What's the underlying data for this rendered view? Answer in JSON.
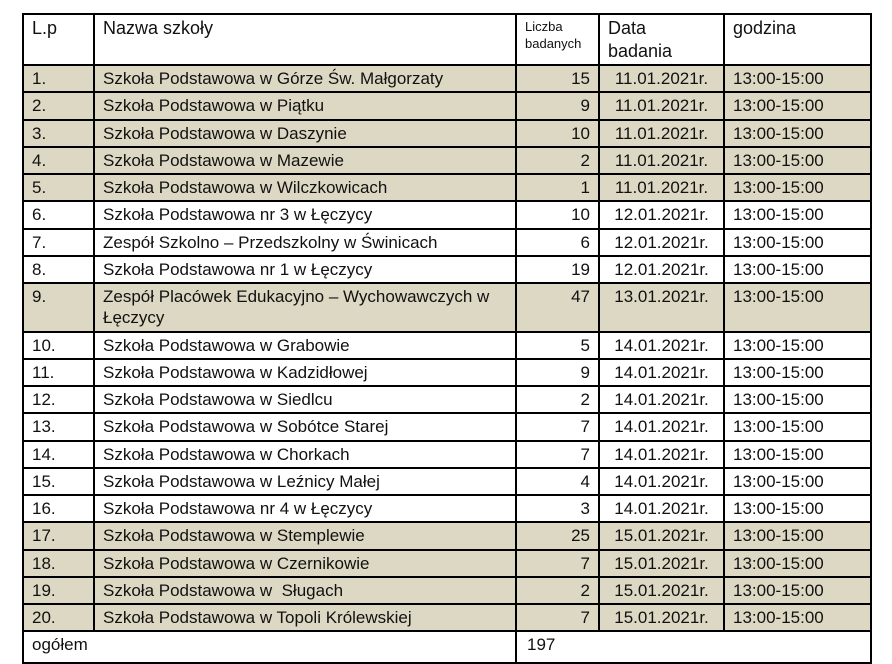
{
  "colors": {
    "shaded_row_bg": "#DDD8C3",
    "border": "#000000",
    "text": "#111111",
    "page_bg": "#FFFFFF"
  },
  "table": {
    "headers": [
      "L.p",
      "Nazwa szkoły",
      "Liczba badanych",
      "Data badania",
      "godzina"
    ],
    "rows": [
      {
        "lp": "1.",
        "name": "Szkoła Podstawowa w Górze Św. Małgorzaty",
        "count": "15",
        "date": "11.01.2021r.",
        "time": "13:00-15:00",
        "shaded": true
      },
      {
        "lp": "2.",
        "name": "Szkoła Podstawowa w Piątku",
        "count": "9",
        "date": "11.01.2021r.",
        "time": "13:00-15:00",
        "shaded": true
      },
      {
        "lp": "3.",
        "name": "Szkoła Podstawowa w Daszynie",
        "count": "10",
        "date": "11.01.2021r.",
        "time": "13:00-15:00",
        "shaded": true
      },
      {
        "lp": "4.",
        "name": "Szkoła Podstawowa w Mazewie",
        "count": "2",
        "date": "11.01.2021r.",
        "time": "13:00-15:00",
        "shaded": true
      },
      {
        "lp": "5.",
        "name": "Szkoła Podstawowa w Wilczkowicach",
        "count": "1",
        "date": "11.01.2021r.",
        "time": "13:00-15:00",
        "shaded": true
      },
      {
        "lp": "6.",
        "name": "Szkoła Podstawowa nr 3 w Łęczycy",
        "count": "10",
        "date": "12.01.2021r.",
        "time": "13:00-15:00",
        "shaded": false
      },
      {
        "lp": "7.",
        "name": "Zespół Szkolno – Przedszkolny w Świnicach",
        "count": "6",
        "date": "12.01.2021r.",
        "time": "13:00-15:00",
        "shaded": false
      },
      {
        "lp": "8.",
        "name": "Szkoła Podstawowa nr 1 w Łęczycy",
        "count": "19",
        "date": "12.01.2021r.",
        "time": "13:00-15:00",
        "shaded": false
      },
      {
        "lp": "9.",
        "name": "Zespół Placówek Edukacyjno – Wychowawczych w Łęczycy",
        "count": "47",
        "date": "13.01.2021r.",
        "time": "13:00-15:00",
        "shaded": true
      },
      {
        "lp": "10.",
        "name": "Szkoła Podstawowa w Grabowie",
        "count": "5",
        "date": "14.01.2021r.",
        "time": "13:00-15:00",
        "shaded": false
      },
      {
        "lp": "11.",
        "name": "Szkoła Podstawowa w Kadzidłowej",
        "count": "9",
        "date": "14.01.2021r.",
        "time": "13:00-15:00",
        "shaded": false
      },
      {
        "lp": "12.",
        "name": "Szkoła Podstawowa w Siedlcu",
        "count": "2",
        "date": "14.01.2021r.",
        "time": "13:00-15:00",
        "shaded": false
      },
      {
        "lp": "13.",
        "name": "Szkoła Podstawowa w Sobótce Starej",
        "count": "7",
        "date": "14.01.2021r.",
        "time": "13:00-15:00",
        "shaded": false
      },
      {
        "lp": "14.",
        "name": "Szkoła Podstawowa w Chorkach",
        "count": "7",
        "date": "14.01.2021r.",
        "time": "13:00-15:00",
        "shaded": false
      },
      {
        "lp": "15.",
        "name": "Szkoła Podstawowa w Leźnicy Małej",
        "count": "4",
        "date": "14.01.2021r.",
        "time": "13:00-15:00",
        "shaded": false
      },
      {
        "lp": "16.",
        "name": "Szkoła Podstawowa nr 4 w Łęczycy",
        "count": "3",
        "date": "14.01.2021r.",
        "time": "13:00-15:00",
        "shaded": false
      },
      {
        "lp": "17.",
        "name": "Szkoła Podstawowa w Stemplewie",
        "count": "25",
        "date": "15.01.2021r.",
        "time": "13:00-15:00",
        "shaded": true
      },
      {
        "lp": "18.",
        "name": "Szkoła Podstawowa w Czernikowie",
        "count": "7",
        "date": "15.01.2021r.",
        "time": "13:00-15:00",
        "shaded": true
      },
      {
        "lp": "19.",
        "name": "Szkoła Podstawowa w  Sługach",
        "count": "2",
        "date": "15.01.2021r.",
        "time": "13:00-15:00",
        "shaded": true
      },
      {
        "lp": "20.",
        "name": "Szkoła Podstawowa w Topoli Królewskiej",
        "count": "7",
        "date": "15.01.2021r.",
        "time": "13:00-15:00",
        "shaded": true
      }
    ],
    "footer": {
      "label": "ogółem",
      "total": "197"
    }
  }
}
